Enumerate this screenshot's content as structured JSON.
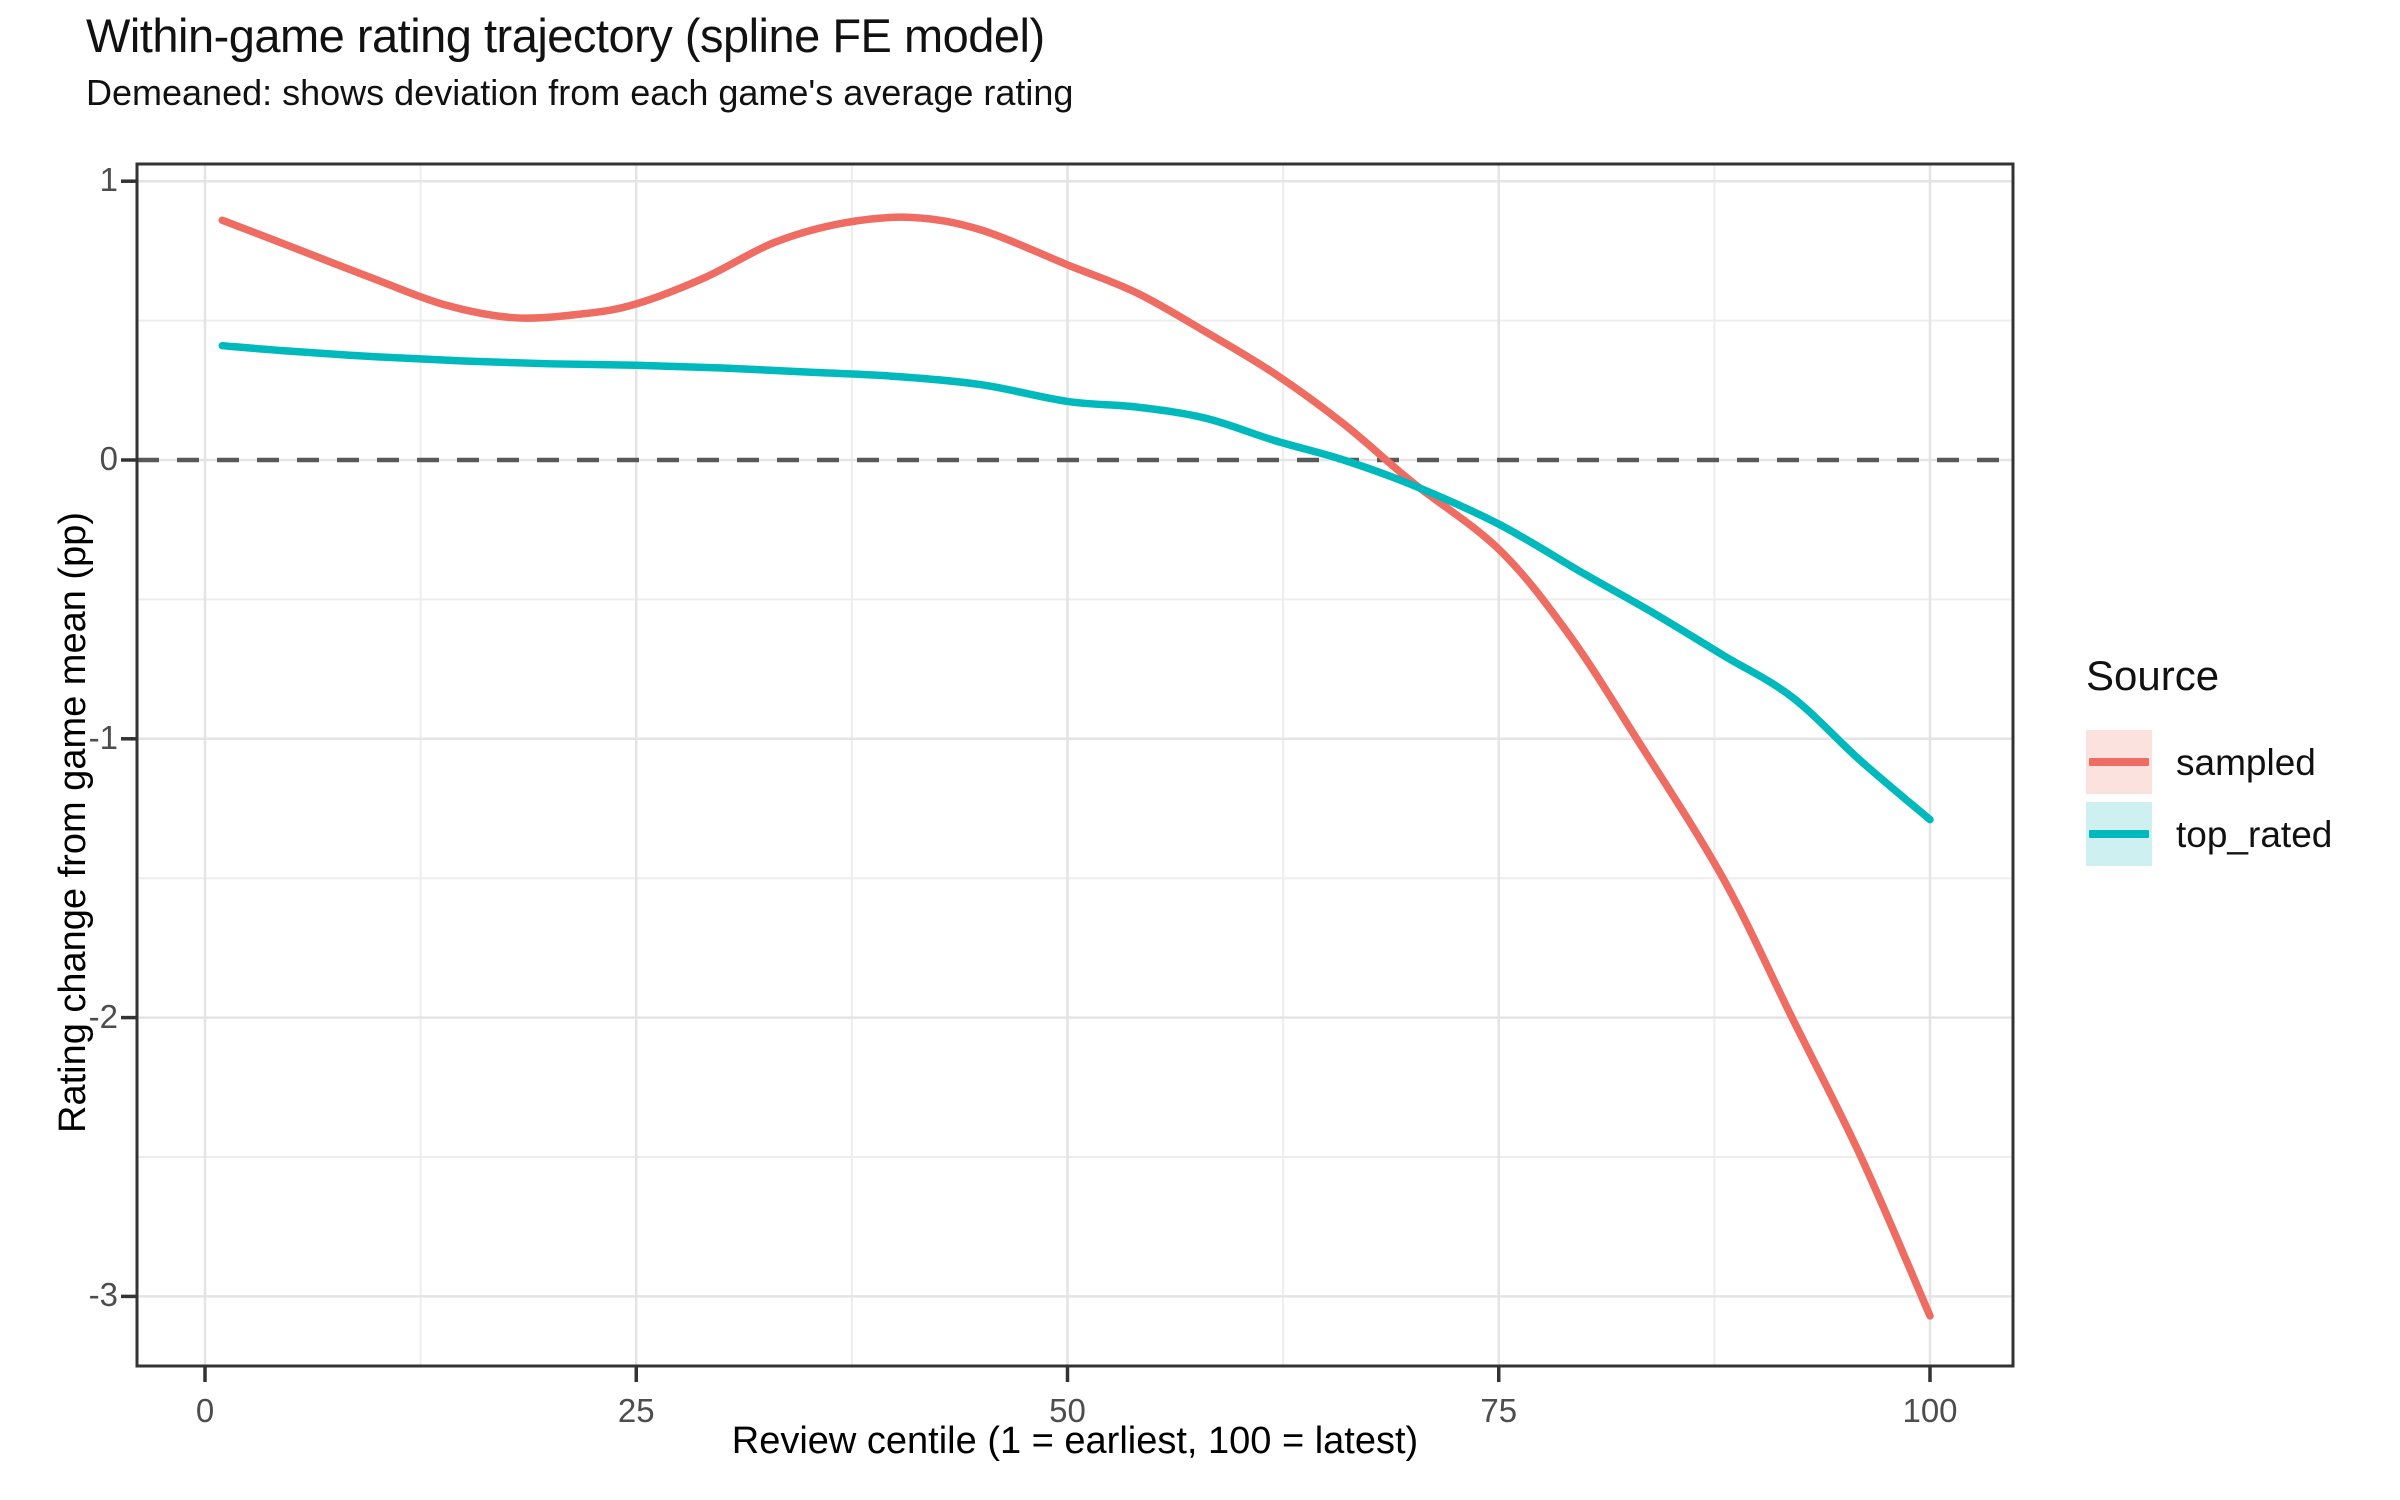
{
  "chart_data": {
    "type": "line",
    "title": "Within-game rating trajectory (spline FE model)",
    "subtitle": "Demeaned: shows deviation from each game's average rating",
    "xlabel": "Review centile (1 = earliest, 100 = latest)",
    "ylabel": "Rating change from game mean (pp)",
    "x_ticks": [
      0,
      25,
      50,
      75,
      100
    ],
    "y_ticks": [
      1,
      0,
      -1,
      -2,
      -3
    ],
    "x_minor": [
      12.5,
      37.5,
      62.5,
      87.5
    ],
    "y_minor": [
      0.5,
      -0.5,
      -1.5,
      -2.5
    ],
    "xlim": [
      -3.9,
      104.8
    ],
    "ylim": [
      -3.25,
      1.06
    ],
    "grid": true,
    "legend_position": "right",
    "legend_title": "Source",
    "reference_line": {
      "y": 0,
      "style": "dashed",
      "color": "#595959"
    },
    "series": [
      {
        "name": "sampled",
        "color": "#EE6C61",
        "key_fill": "#FBE2DF",
        "points": [
          [
            1,
            0.86
          ],
          [
            5,
            0.765
          ],
          [
            10,
            0.645
          ],
          [
            14,
            0.555
          ],
          [
            18,
            0.51
          ],
          [
            22,
            0.525
          ],
          [
            25,
            0.56
          ],
          [
            29,
            0.655
          ],
          [
            33,
            0.78
          ],
          [
            37,
            0.85
          ],
          [
            41,
            0.87
          ],
          [
            45,
            0.825
          ],
          [
            50,
            0.7
          ],
          [
            54,
            0.6
          ],
          [
            58,
            0.46
          ],
          [
            62,
            0.31
          ],
          [
            66,
            0.13
          ],
          [
            70,
            -0.08
          ],
          [
            75,
            -0.32
          ],
          [
            79,
            -0.62
          ],
          [
            83,
            -1.0
          ],
          [
            88,
            -1.5
          ],
          [
            92,
            -2.0
          ],
          [
            96,
            -2.5
          ],
          [
            100,
            -3.07
          ]
        ]
      },
      {
        "name": "top_rated",
        "color": "#00B9BD",
        "key_fill": "#CFF0F0",
        "points": [
          [
            1,
            0.41
          ],
          [
            5,
            0.39
          ],
          [
            10,
            0.37
          ],
          [
            15,
            0.355
          ],
          [
            20,
            0.345
          ],
          [
            25,
            0.34
          ],
          [
            30,
            0.33
          ],
          [
            35,
            0.315
          ],
          [
            40,
            0.3
          ],
          [
            45,
            0.27
          ],
          [
            50,
            0.21
          ],
          [
            54,
            0.19
          ],
          [
            58,
            0.15
          ],
          [
            62,
            0.07
          ],
          [
            66,
            0.0
          ],
          [
            70,
            -0.09
          ],
          [
            75,
            -0.23
          ],
          [
            80,
            -0.41
          ],
          [
            84,
            -0.55
          ],
          [
            88,
            -0.7
          ],
          [
            92,
            -0.85
          ],
          [
            96,
            -1.08
          ],
          [
            100,
            -1.29
          ]
        ]
      }
    ]
  }
}
